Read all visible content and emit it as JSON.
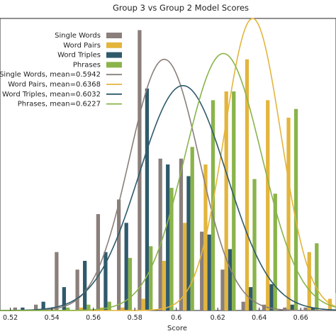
{
  "chart_data": {
    "type": "bar",
    "title": "Group 3 vs Group 2 Model Scores",
    "xlabel": "Score",
    "ylabel": "",
    "xlim": [
      0.515,
      0.677
    ],
    "ylim": [
      0,
      1.0
    ],
    "xticks": [
      "0.52",
      "0.54",
      "0.56",
      "0.58",
      "0.6",
      "0.62",
      "0.64",
      "0.66"
    ],
    "x": [
      0.525,
      0.535,
      0.545,
      0.555,
      0.565,
      0.575,
      0.585,
      0.595,
      0.605,
      0.615,
      0.625,
      0.635,
      0.645,
      0.655,
      0.665,
      0.675
    ],
    "grid": false,
    "legend_position": "top-left",
    "series": [
      {
        "name": "Single Words",
        "color": "#8a7f7b",
        "values": [
          0.01,
          0.02,
          0.2,
          0.14,
          0.33,
          0.38,
          0.96,
          0.52,
          0.52,
          0.27,
          0.14,
          0.03,
          0.02,
          0.01,
          0.01,
          0.0
        ]
      },
      {
        "name": "Word Pairs",
        "color": "#e3b53d",
        "values": [
          0.0,
          0.0,
          0.0,
          0.01,
          0.01,
          0.01,
          0.04,
          0.17,
          0.3,
          0.5,
          0.75,
          0.86,
          0.72,
          0.66,
          0.2,
          0.04
        ]
      },
      {
        "name": "Word Triples",
        "color": "#2f5a6b",
        "values": [
          0.01,
          0.03,
          0.08,
          0.17,
          0.2,
          0.3,
          0.76,
          0.5,
          0.46,
          0.26,
          0.21,
          0.08,
          0.09,
          0.02,
          0.01,
          0.0
        ]
      },
      {
        "name": "Phrases",
        "color": "#8ab44a",
        "values": [
          0.0,
          0.0,
          0.01,
          0.02,
          0.03,
          0.18,
          0.22,
          0.42,
          0.56,
          0.72,
          0.75,
          0.45,
          0.4,
          0.69,
          0.23,
          0.06
        ]
      }
    ],
    "curves": [
      {
        "label": "Single Words, mean=0.5942",
        "color": "#8a7f7b",
        "mean": 0.5942,
        "sd": 0.0168,
        "peak": 0.86
      },
      {
        "label": "Word Pairs, mean=0.6368",
        "color": "#e3b53d",
        "mean": 0.6368,
        "sd": 0.0136,
        "peak": 1.0
      },
      {
        "label": "Word Triples, mean=0.6032",
        "color": "#2f5a6b",
        "mean": 0.6032,
        "sd": 0.0211,
        "peak": 0.77
      },
      {
        "label": "Phrases, mean=0.6227",
        "color": "#8ab44a",
        "mean": 0.6227,
        "sd": 0.0184,
        "peak": 0.88
      }
    ]
  }
}
